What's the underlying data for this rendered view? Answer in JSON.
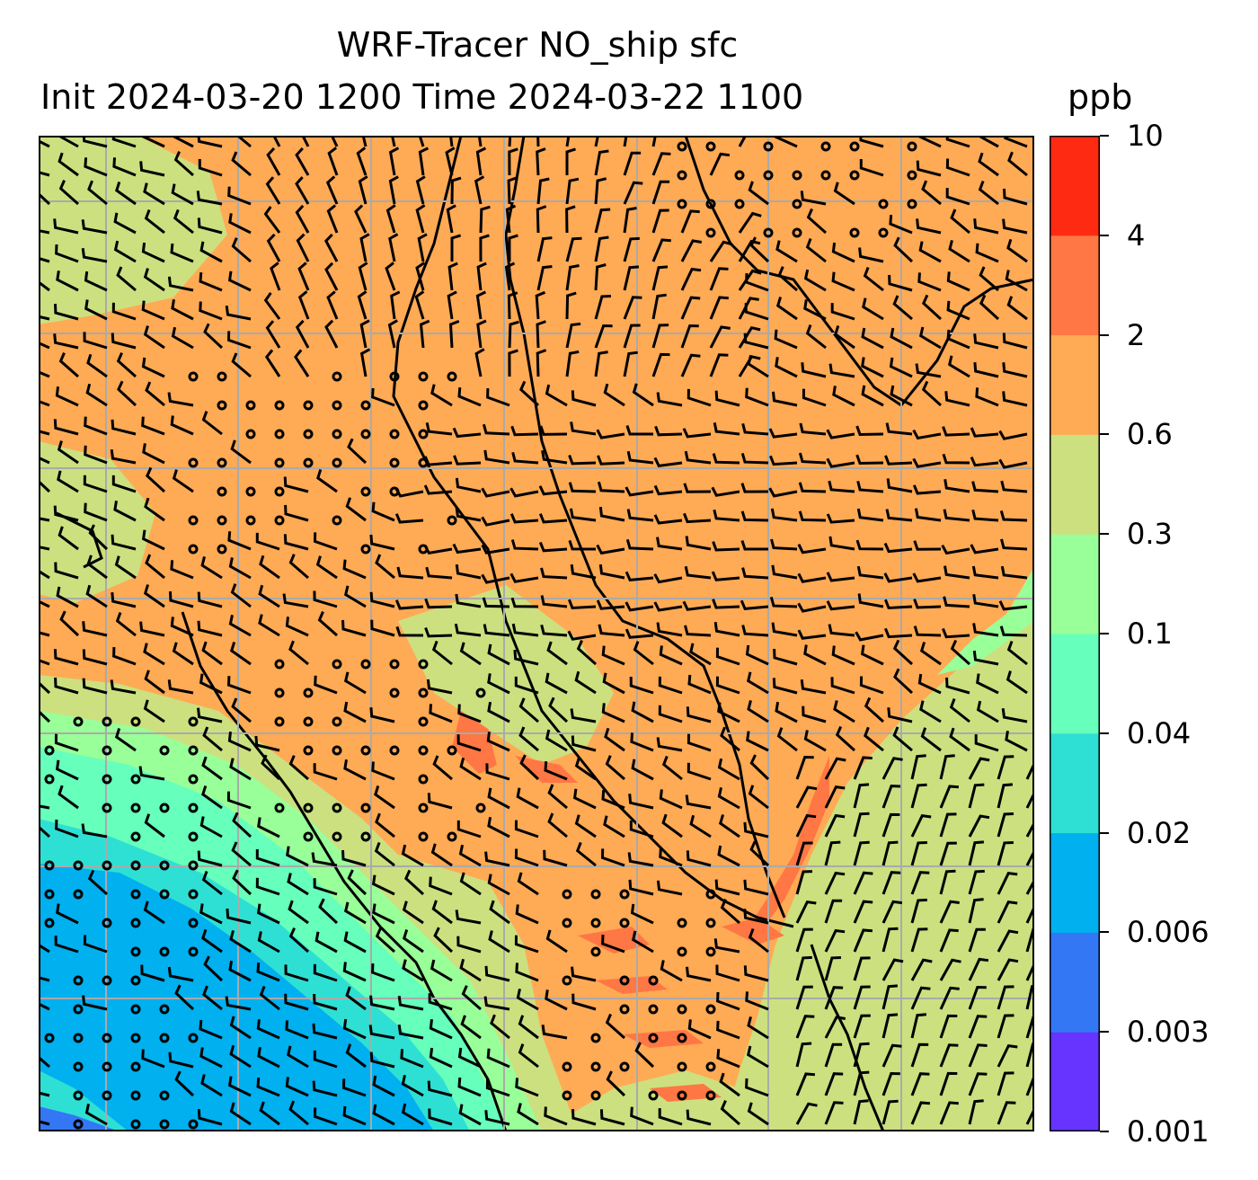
{
  "title": {
    "line1": "WRF-Tracer NO_ship sfc",
    "line2": "Init 2024-03-20 1200 Time 2024-03-22 1100"
  },
  "units": "ppb",
  "colorbar": {
    "levels": [
      "0.001",
      "0.003",
      "0.006",
      "0.02",
      "0.04",
      "0.1",
      "0.3",
      "0.6",
      "2",
      "4",
      "10"
    ],
    "colors": [
      "#6633ff",
      "#3377f5",
      "#00b0ef",
      "#2ee0d4",
      "#66ffbb",
      "#99ff99",
      "#cce080",
      "#ffaa55",
      "#ff7744",
      "#ff2a12"
    ]
  },
  "map": {
    "background": "#ffaa55",
    "gridline_color": "#aaaaaa",
    "coastline_color": "#000000",
    "regions": [
      {
        "level": "0.3-0.6",
        "color": "#cce080"
      },
      {
        "level": "0.1-0.3",
        "color": "#99ff99"
      },
      {
        "level": "0.04-0.1",
        "color": "#66ffbb"
      },
      {
        "level": "0.02-0.04",
        "color": "#2ee0d4"
      },
      {
        "level": "0.006-0.02",
        "color": "#00b0ef"
      },
      {
        "level": "0.003-0.006",
        "color": "#3377f5"
      },
      {
        "level": "2-4",
        "color": "#ff7744"
      }
    ],
    "wind_barbs": "surface wind barbs",
    "calm_marker": "circle"
  }
}
